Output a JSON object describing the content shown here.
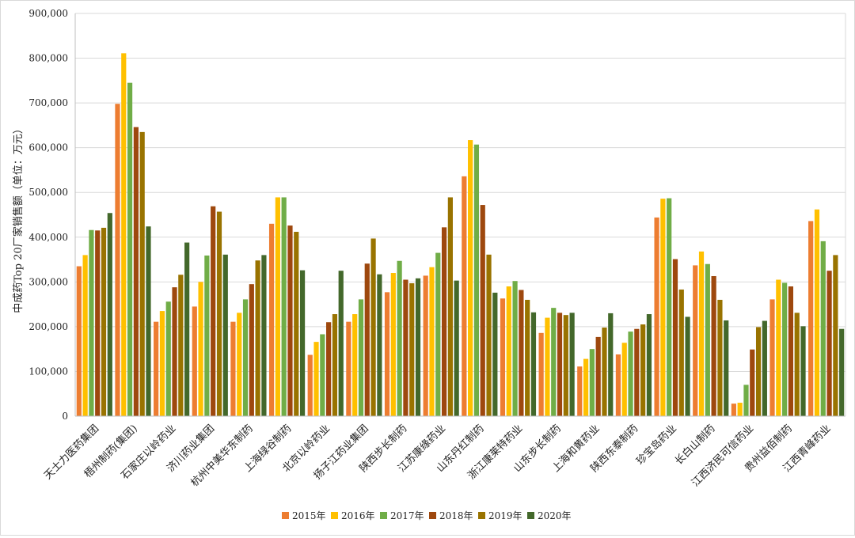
{
  "chart_data": {
    "type": "bar",
    "title": "",
    "ylabel": "中成药Top 20厂家销售额（单位：万元）",
    "xlabel": "",
    "ylim": [
      0,
      900000
    ],
    "yticks": [
      "0",
      "100,000",
      "200,000",
      "300,000",
      "400,000",
      "500,000",
      "600,000",
      "700,000",
      "800,000",
      "900,000"
    ],
    "grid": true,
    "legend_position": "bottom",
    "categories": [
      "天士力医药集团",
      "梧州制药(集团)",
      "石家庄以岭药业",
      "济川药业集团",
      "杭州中美华东制药",
      "上海绿谷制药",
      "北京以岭药业",
      "扬子江药业集团",
      "陕西步长制药",
      "江苏康缘药业",
      "山东丹红制药",
      "浙江康莱特药业",
      "山东步长制药",
      "上海和黄药业",
      "陕西东泰制药",
      "珍宝岛药业",
      "长白山制药",
      "江西济民可信药业",
      "贵州益佰制药",
      "江西青峰药业"
    ],
    "series": [
      {
        "name": "2015年",
        "color": "#ED7D31",
        "values": [
          335000,
          698000,
          211000,
          245000,
          211000,
          430000,
          137000,
          211000,
          277000,
          314000,
          536000,
          263000,
          186000,
          111000,
          138000,
          444000,
          337000,
          28000,
          261000,
          436000
        ]
      },
      {
        "name": "2016年",
        "color": "#FFC000",
        "values": [
          360000,
          811000,
          235000,
          300000,
          231000,
          489000,
          166000,
          228000,
          320000,
          333000,
          617000,
          290000,
          220000,
          128000,
          164000,
          486000,
          368000,
          30000,
          305000,
          462000
        ]
      },
      {
        "name": "2017年",
        "color": "#70AD47",
        "values": [
          416000,
          745000,
          256000,
          359000,
          261000,
          489000,
          183000,
          261000,
          347000,
          365000,
          607000,
          302000,
          242000,
          150000,
          189000,
          487000,
          340000,
          70000,
          298000,
          391000
        ]
      },
      {
        "name": "2018年",
        "color": "#9E480E",
        "values": [
          415000,
          646000,
          288000,
          469000,
          295000,
          426000,
          210000,
          341000,
          305000,
          422000,
          472000,
          282000,
          231000,
          177000,
          195000,
          351000,
          313000,
          149000,
          290000,
          325000
        ]
      },
      {
        "name": "2019年",
        "color": "#997300",
        "values": [
          421000,
          635000,
          316000,
          457000,
          348000,
          412000,
          228000,
          397000,
          297000,
          489000,
          361000,
          260000,
          226000,
          198000,
          205000,
          283000,
          260000,
          199000,
          231000,
          360000
        ]
      },
      {
        "name": "2020年",
        "color": "#43682B",
        "values": [
          454000,
          424000,
          388000,
          361000,
          360000,
          326000,
          325000,
          317000,
          308000,
          303000,
          276000,
          232000,
          231000,
          230000,
          228000,
          222000,
          214000,
          213000,
          201000,
          195000
        ]
      }
    ]
  }
}
